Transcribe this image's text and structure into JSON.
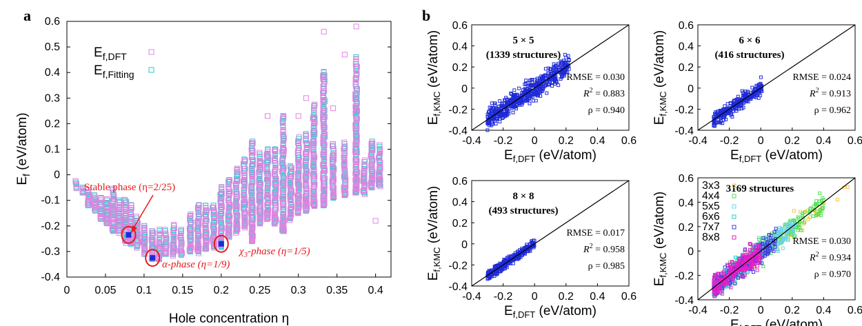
{
  "panel_labels": [
    "a",
    "b"
  ],
  "colors": {
    "dft": "#e184e1",
    "fit": "#1ecece",
    "annot": "#e31a1c",
    "blue": "#1f2ad6",
    "diag": "#000000"
  },
  "chart_data": [
    {
      "type": "scatter",
      "id": "a",
      "xlabel": "Hole concentration η",
      "ylabel_main": "E",
      "ylabel_sub": "f",
      "ylabel_unit": " (eV/atom)",
      "xlim": [
        0,
        0.42
      ],
      "ylim": [
        -0.4,
        0.6
      ],
      "xticks": [
        "0",
        "0.05",
        "0.1",
        "0.15",
        "0.2",
        "0.25",
        "0.3",
        "0.35",
        "0.4"
      ],
      "yticks": [
        "-0.4",
        "-0.3",
        "-0.2",
        "-0.1",
        "0",
        "0.1",
        "0.2",
        "0.3",
        "0.4",
        "0.5",
        "0.6"
      ],
      "legend": [
        {
          "main": "E",
          "sub": "f,DFT",
          "marker": "dft"
        },
        {
          "main": "E",
          "sub": "f,Fitting",
          "marker": "fit"
        }
      ],
      "annotations": [
        {
          "text": "Stable phase (η=2/25)",
          "x": 0.08,
          "y": -0.235
        },
        {
          "text_pre": "α-phase (η=1/9)",
          "x": 0.111,
          "y": -0.325
        },
        {
          "text_pre": "χ",
          "text_sub": "3",
          "text_post": "-phase (η=1/5)",
          "x": 0.2,
          "y": -0.27
        }
      ],
      "series": [
        {
          "marker": "square-open",
          "columns": [
            {
              "x": 0.012,
              "min": -0.05,
              "max": -0.03
            },
            {
              "x": 0.02,
              "min": -0.07,
              "max": -0.05
            },
            {
              "x": 0.028,
              "min": -0.12,
              "max": -0.06
            },
            {
              "x": 0.036,
              "min": -0.14,
              "max": -0.08
            },
            {
              "x": 0.044,
              "min": -0.17,
              "max": -0.09
            },
            {
              "x": 0.052,
              "min": -0.19,
              "max": -0.1
            },
            {
              "x": 0.06,
              "min": -0.22,
              "max": -0.06
            },
            {
              "x": 0.068,
              "min": -0.22,
              "max": -0.1
            },
            {
              "x": 0.076,
              "min": -0.26,
              "max": -0.1
            },
            {
              "x": 0.083,
              "min": -0.27,
              "max": -0.12
            },
            {
              "x": 0.091,
              "min": -0.28,
              "max": -0.17
            },
            {
              "x": 0.1,
              "min": -0.31,
              "max": -0.2
            },
            {
              "x": 0.111,
              "min": -0.33,
              "max": -0.22
            },
            {
              "x": 0.12,
              "min": -0.33,
              "max": -0.22
            },
            {
              "x": 0.128,
              "min": -0.31,
              "max": -0.22
            },
            {
              "x": 0.138,
              "min": -0.31,
              "max": -0.2
            },
            {
              "x": 0.148,
              "min": -0.31,
              "max": -0.22
            },
            {
              "x": 0.16,
              "min": -0.3,
              "max": -0.16
            },
            {
              "x": 0.17,
              "min": -0.3,
              "max": -0.12
            },
            {
              "x": 0.18,
              "min": -0.29,
              "max": -0.12
            },
            {
              "x": 0.19,
              "min": -0.28,
              "max": -0.12
            },
            {
              "x": 0.2,
              "min": -0.28,
              "max": -0.05
            },
            {
              "x": 0.21,
              "min": -0.24,
              "max": -0.02
            },
            {
              "x": 0.22,
              "min": -0.22,
              "max": 0.02
            },
            {
              "x": 0.23,
              "min": -0.2,
              "max": 0.06
            },
            {
              "x": 0.24,
              "min": -0.26,
              "max": 0.13
            },
            {
              "x": 0.25,
              "min": -0.19,
              "max": 0.08
            },
            {
              "x": 0.26,
              "min": -0.17,
              "max": 0.1
            },
            {
              "x": 0.27,
              "min": -0.19,
              "max": 0.1
            },
            {
              "x": 0.28,
              "min": -0.22,
              "max": 0.23
            },
            {
              "x": 0.29,
              "min": -0.17,
              "max": 0.03
            },
            {
              "x": 0.3,
              "min": -0.15,
              "max": 0.14
            },
            {
              "x": 0.31,
              "min": -0.14,
              "max": 0.16
            },
            {
              "x": 0.32,
              "min": -0.12,
              "max": 0.27
            },
            {
              "x": 0.333,
              "min": -0.12,
              "max": 0.4
            },
            {
              "x": 0.345,
              "min": -0.09,
              "max": 0.12
            },
            {
              "x": 0.36,
              "min": -0.08,
              "max": 0.12
            },
            {
              "x": 0.375,
              "min": -0.07,
              "max": 0.46
            },
            {
              "x": 0.385,
              "min": -0.07,
              "max": 0.05
            },
            {
              "x": 0.395,
              "min": -0.05,
              "max": 0.13
            },
            {
              "x": 0.405,
              "min": -0.04,
              "max": 0.11
            }
          ],
          "dft_outliers": [
            {
              "x": 0.333,
              "y": 0.56
            },
            {
              "x": 0.375,
              "y": 0.58
            },
            {
              "x": 0.4,
              "y": -0.18
            },
            {
              "x": 0.36,
              "y": 0.47
            },
            {
              "x": 0.31,
              "y": 0.3
            },
            {
              "x": 0.26,
              "y": 0.23
            },
            {
              "x": 0.3,
              "y": 0.23
            },
            {
              "x": 0.345,
              "y": 0.26
            }
          ],
          "highlights": [
            {
              "x": 0.08,
              "y": -0.235
            },
            {
              "x": 0.111,
              "y": -0.325
            },
            {
              "x": 0.2,
              "y": -0.27
            }
          ]
        }
      ]
    },
    {
      "type": "scatter",
      "id": "b1",
      "title": "5 × 5",
      "subtitle": "(1339 structures)",
      "xlim": [
        -0.4,
        0.6
      ],
      "ylim": [
        -0.4,
        0.6
      ],
      "xticks": [
        "-0.4",
        "-0.2",
        "0",
        "0.2",
        "0.4",
        "0.6"
      ],
      "yticks": [
        "-0.4",
        "-0.2",
        "0",
        "0.2",
        "0.4",
        "0.6"
      ],
      "xlabel_main": "E",
      "xlabel_sub": "f,DFT",
      "xlabel_unit": " (eV/atom)",
      "ylabel_main": "E",
      "ylabel_sub": "f,KMC",
      "ylabel_unit": " (eV/atom)",
      "stats": {
        "rmse": "RMSE = 0.030",
        "r2_val": " = 0.883",
        "rho": "ρ = 0.940"
      },
      "range": [
        -0.3,
        0.22
      ],
      "spread": 0.05,
      "n": 520
    },
    {
      "type": "scatter",
      "id": "b2",
      "title": "6 × 6",
      "subtitle": "(416 structures)",
      "xlim": [
        -0.4,
        0.6
      ],
      "ylim": [
        -0.4,
        0.6
      ],
      "xticks": [
        "-0.4",
        "-0.2",
        "0",
        "0.2",
        "0.4",
        "0.6"
      ],
      "yticks": [
        "-0.4",
        "-0.2",
        "0",
        "0.2",
        "0.4",
        "0.6"
      ],
      "xlabel_main": "E",
      "xlabel_sub": "f,DFT",
      "xlabel_unit": " (eV/atom)",
      "ylabel_main": "E",
      "ylabel_sub": "f,KMC",
      "ylabel_unit": " (eV/atom)",
      "stats": {
        "rmse": "RMSE = 0.024",
        "r2_val": " = 0.913",
        "rho": "ρ = 0.962"
      },
      "range": [
        -0.3,
        0.01
      ],
      "spread": 0.035,
      "n": 260
    },
    {
      "type": "scatter",
      "id": "b3",
      "title": "8 × 8",
      "subtitle": "(493 structures)",
      "xlim": [
        -0.4,
        0.6
      ],
      "ylim": [
        -0.4,
        0.6
      ],
      "xticks": [
        "-0.4",
        "-0.2",
        "0",
        "0.2",
        "0.4",
        "0.6"
      ],
      "yticks": [
        "-0.4",
        "-0.2",
        "0",
        "0.2",
        "0.4",
        "0.6"
      ],
      "xlabel_main": "E",
      "xlabel_sub": "f,DFT",
      "xlabel_unit": " (eV/atom)",
      "ylabel_main": "E",
      "ylabel_sub": "f,KMC",
      "ylabel_unit": " (eV/atom)",
      "stats": {
        "rmse": "RMSE = 0.017",
        "r2_val": " = 0.958",
        "rho": "ρ = 0.985"
      },
      "range": [
        -0.3,
        0.0
      ],
      "spread": 0.022,
      "n": 300
    },
    {
      "type": "scatter",
      "id": "b4",
      "title": "3169 structures",
      "xlim": [
        -0.4,
        0.6
      ],
      "ylim": [
        -0.4,
        0.6
      ],
      "xticks": [
        "-0.4",
        "-0.2",
        "0",
        "0.2",
        "0.4",
        "0.6"
      ],
      "yticks": [
        "-0.4",
        "-0.2",
        "0",
        "0.2",
        "0.4",
        "0.6"
      ],
      "xlabel_main": "E",
      "xlabel_sub": "f,DFT",
      "xlabel_unit": " (eV/atom)",
      "ylabel_main": "E",
      "ylabel_sub": "f,KMC",
      "ylabel_unit": " (eV/atom)",
      "stats": {
        "rmse": "RMSE = 0.030",
        "r2_val": " = 0.934",
        "rho": "ρ = 0.970"
      },
      "legend": [
        {
          "name": "3x3",
          "color": "#f2c54a",
          "range": [
            -0.1,
            0.57
          ],
          "n": 40
        },
        {
          "name": "4x4",
          "color": "#4de04d",
          "range": [
            -0.2,
            0.4
          ],
          "n": 200
        },
        {
          "name": "5x5",
          "color": "#6fd0ec",
          "range": [
            -0.3,
            0.22
          ],
          "n": 260
        },
        {
          "name": "6x6",
          "color": "#1ecece",
          "range": [
            -0.3,
            0.01
          ],
          "n": 140
        },
        {
          "name": "7x7",
          "color": "#3a3ad8",
          "range": [
            -0.3,
            0.1
          ],
          "n": 200
        },
        {
          "name": "8x8",
          "color": "#e81ec8",
          "range": [
            -0.3,
            0.0
          ],
          "n": 220
        }
      ]
    }
  ]
}
